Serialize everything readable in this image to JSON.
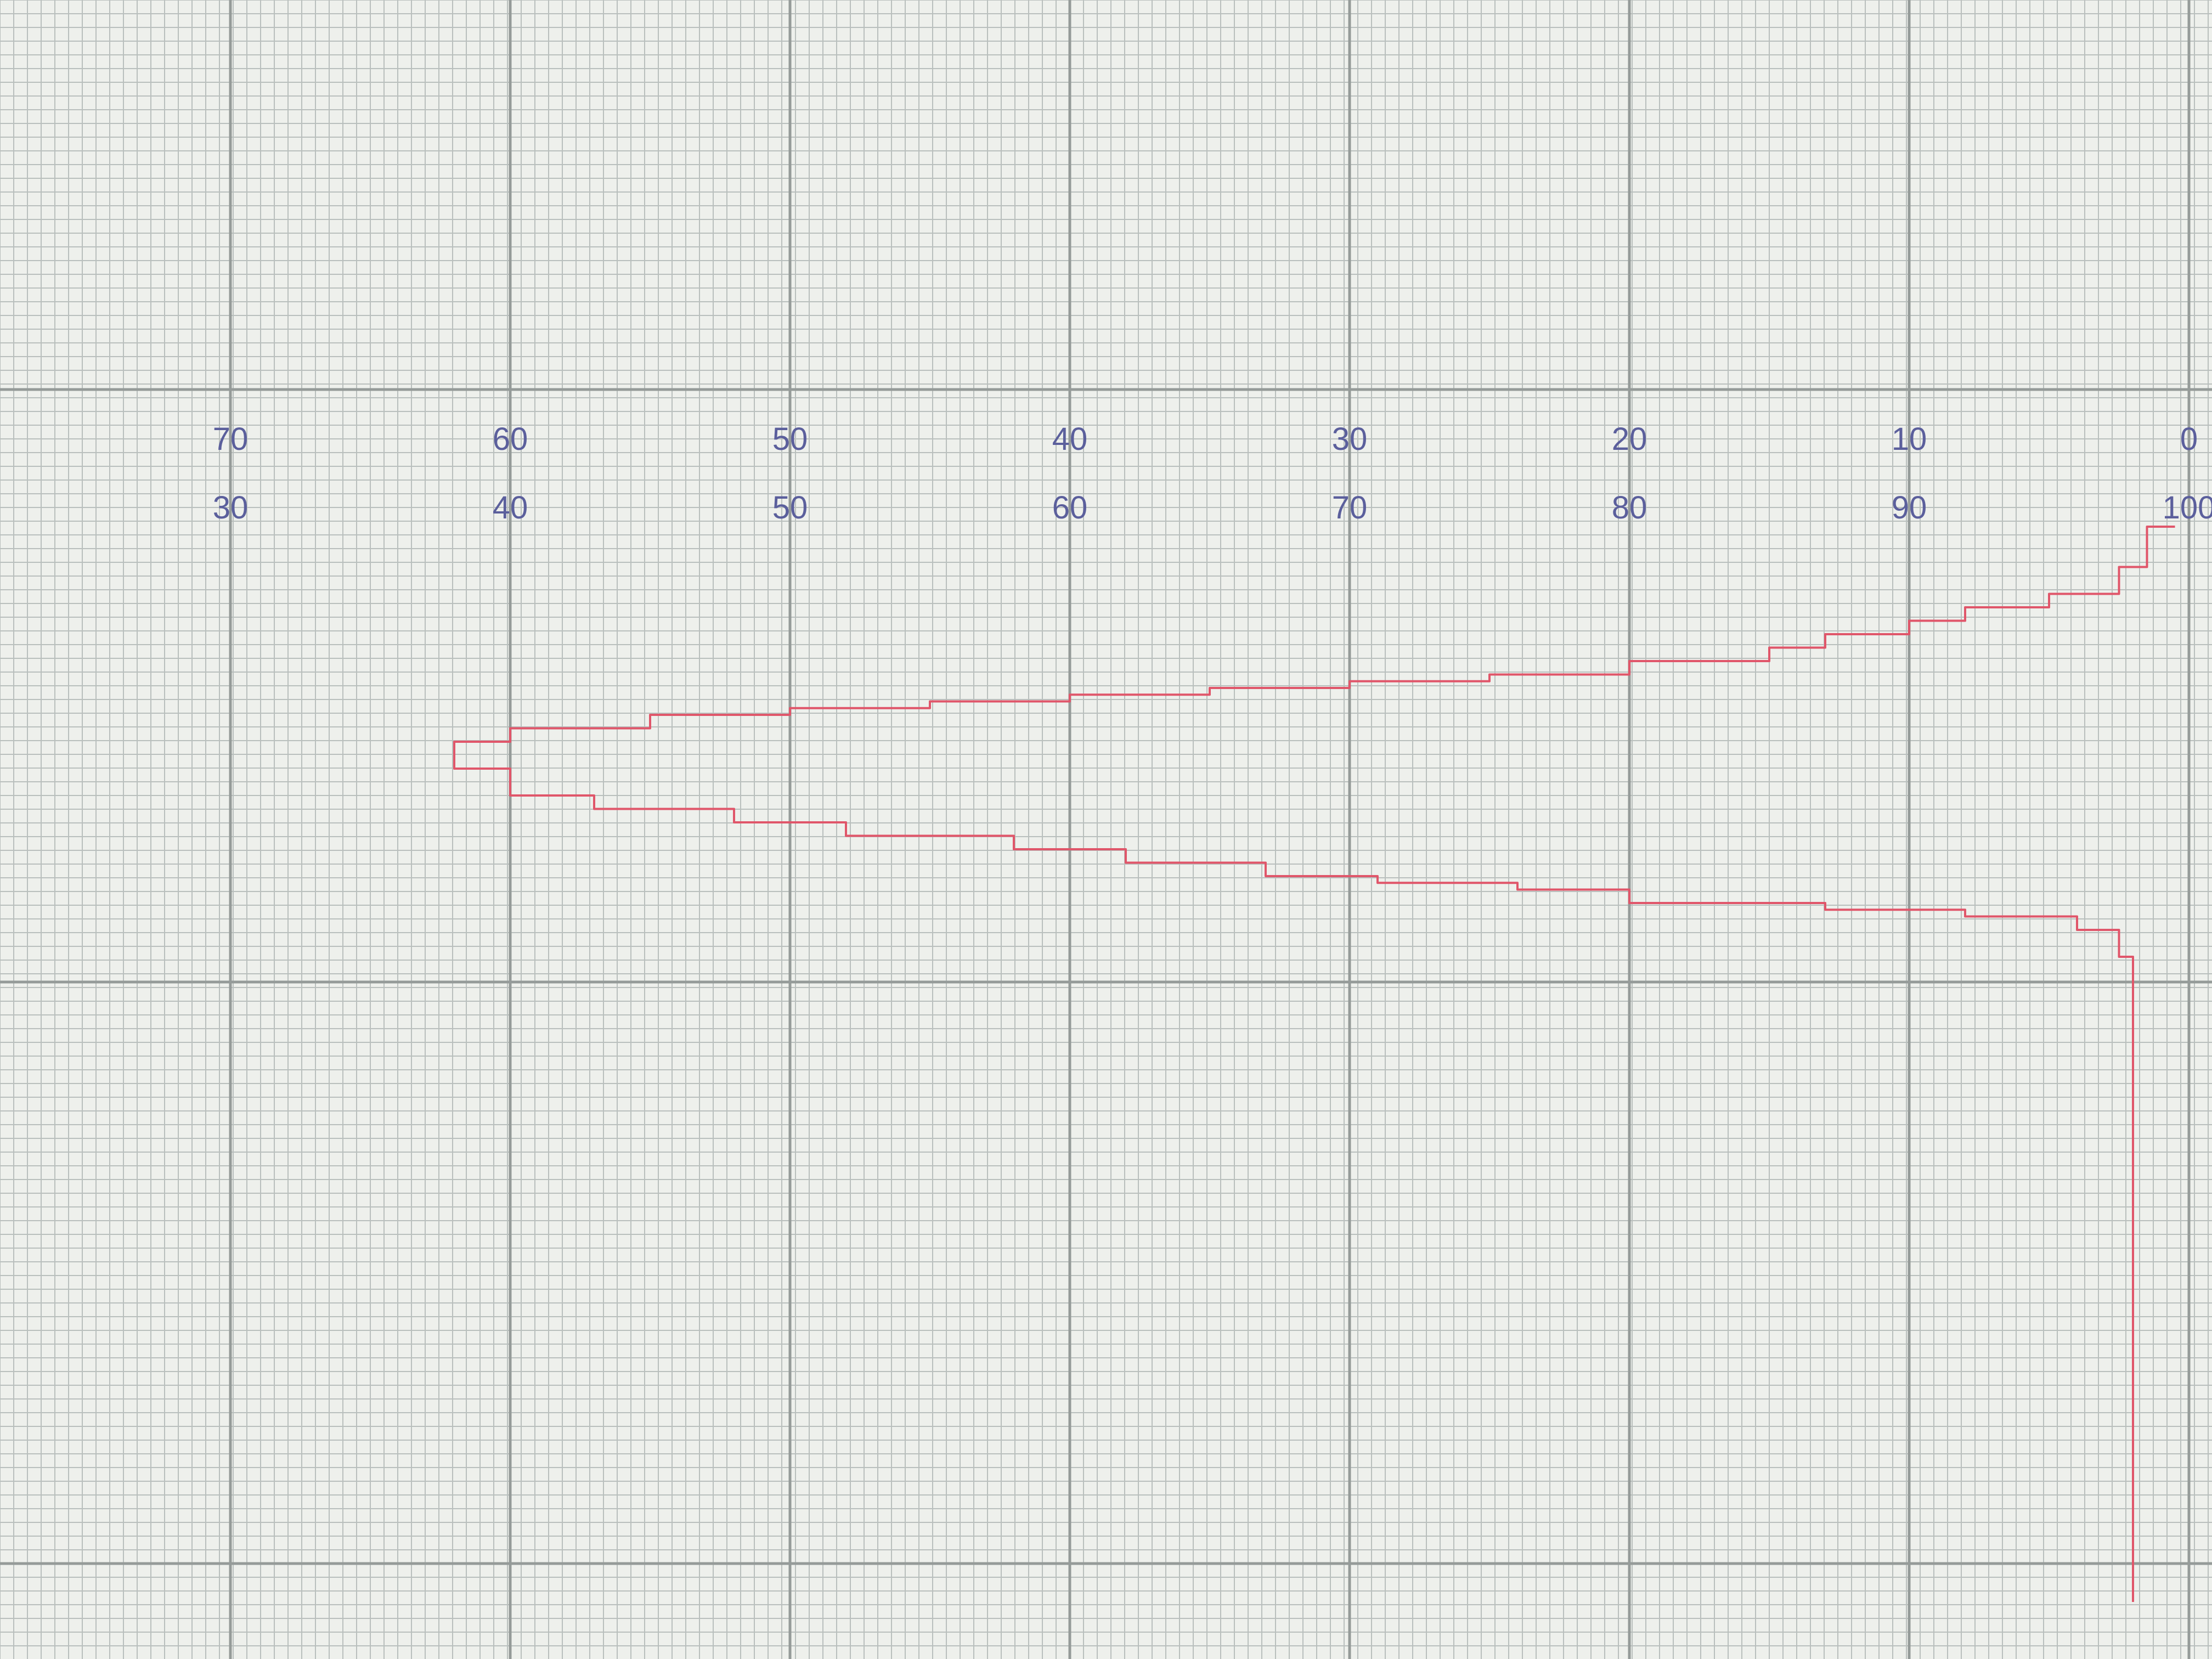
{
  "colors": {
    "paper": "#eef0ec",
    "grid_fine": "#b9bfbd",
    "grid_major": "#959b99",
    "tick_text": "#5b5f9c",
    "trace": "#e0566a"
  },
  "chart_data": {
    "type": "line",
    "title": "",
    "xlabel": "",
    "ylabel": "",
    "grid": true,
    "legend": "none",
    "xlim": [
      70,
      0
    ],
    "x_tick_labels_top": [
      "70",
      "60",
      "50",
      "40",
      "30",
      "20",
      "10",
      "0"
    ],
    "x_tick_labels_bottom": [
      "30",
      "40",
      "50",
      "60",
      "70",
      "80",
      "90",
      "100"
    ],
    "series": [
      {
        "style": "stepped trace",
        "x": [
          0.5,
          1.5,
          2.5,
          5,
          8,
          10,
          13,
          15,
          20,
          25,
          30,
          35,
          40,
          45,
          50,
          55,
          60,
          62,
          60,
          57,
          52,
          48,
          42,
          38,
          33,
          29,
          24,
          20,
          13,
          8,
          4,
          2.5,
          2,
          2,
          2
        ],
        "y": [
          0,
          0.3,
          0.5,
          0.6,
          0.7,
          0.8,
          0.9,
          1.0,
          1.1,
          1.15,
          1.2,
          1.25,
          1.3,
          1.35,
          1.4,
          1.5,
          1.6,
          1.8,
          2.0,
          2.1,
          2.2,
          2.3,
          2.4,
          2.5,
          2.6,
          2.65,
          2.7,
          2.8,
          2.85,
          2.9,
          3.0,
          3.2,
          4.0,
          6.0,
          8.0
        ]
      }
    ]
  }
}
